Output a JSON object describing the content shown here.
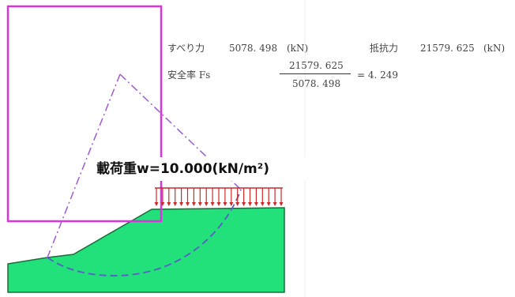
{
  "results": {
    "sliding_label": "すべり力",
    "sliding_value": "5078. 498",
    "sliding_unit": "(kN)",
    "resisting_label": "抵抗力",
    "resisting_value": "21579. 625",
    "resisting_unit": "(kN)",
    "safety_label": "安全率 Fs",
    "numerator": "21579. 625",
    "denominator": "5078. 498",
    "result": "= 4. 249"
  },
  "load_label": "載荷重w=10.000(kN/m²)",
  "load_arrow_count": 21,
  "colors": {
    "ground_fill": "#22e07a",
    "ground_edge": "#1d6b3c",
    "load_arrow": "#cc2a2a",
    "frame": "#dd33dd",
    "slip_circle": "#5a5ac8",
    "slip_radius": "#a05ad0"
  }
}
